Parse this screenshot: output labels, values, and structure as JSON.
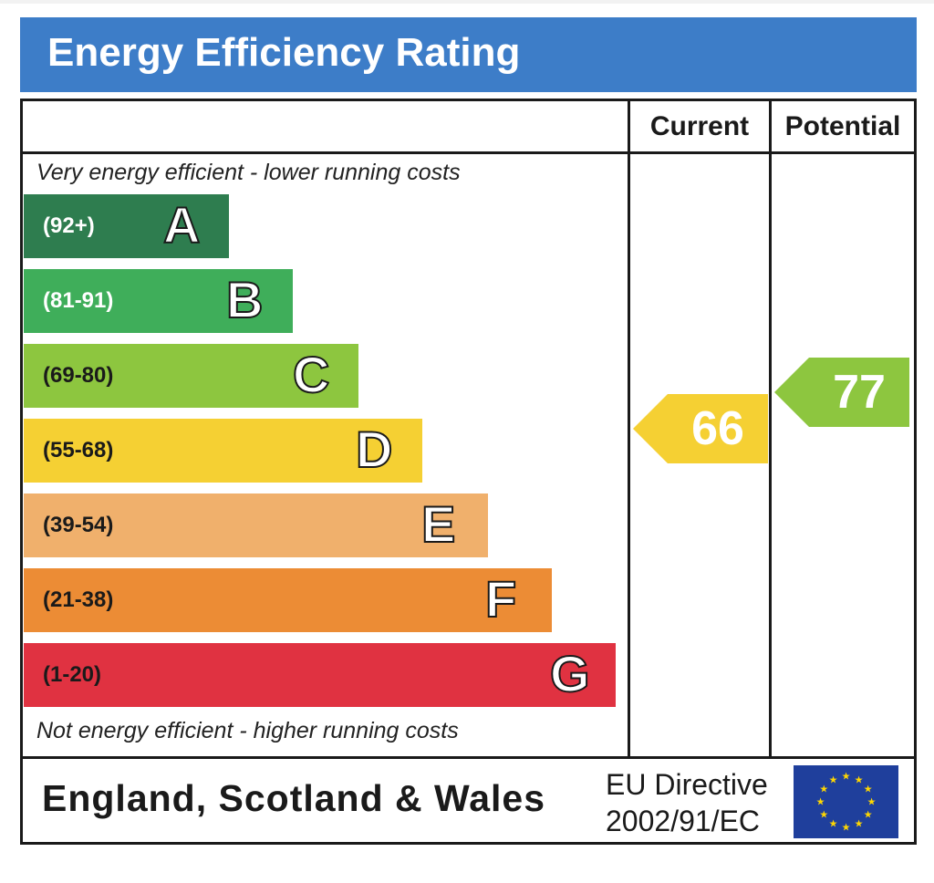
{
  "title": "Energy Efficiency Rating",
  "columns": {
    "current": "Current",
    "potential": "Potential"
  },
  "captions": {
    "top": "Very energy efficient - lower running costs",
    "bottom": "Not energy efficient - higher running costs"
  },
  "chart_data": {
    "type": "bar",
    "title": "Energy Efficiency Rating",
    "categories": [
      "A",
      "B",
      "C",
      "D",
      "E",
      "F",
      "G"
    ],
    "ranges": [
      "(92+)",
      "(81-91)",
      "(69-80)",
      "(55-68)",
      "(39-54)",
      "(21-38)",
      "(1-20)"
    ],
    "colors": [
      "#2e7d4f",
      "#3fae5a",
      "#8dc63f",
      "#f5d033",
      "#f0b06c",
      "#ec8c35",
      "#e03241"
    ],
    "current": {
      "value": 66,
      "band": "D",
      "color": "#f5d033"
    },
    "potential": {
      "value": 77,
      "band": "C",
      "color": "#8dc63f"
    }
  },
  "footer": {
    "region": "England, Scotland & Wales",
    "directive_line1": "EU Directive",
    "directive_line2": "2002/91/EC"
  },
  "eu_flag": {
    "icon": "eu-flag-icon",
    "background": "#1f3f9c",
    "star_color": "#ffd700"
  }
}
